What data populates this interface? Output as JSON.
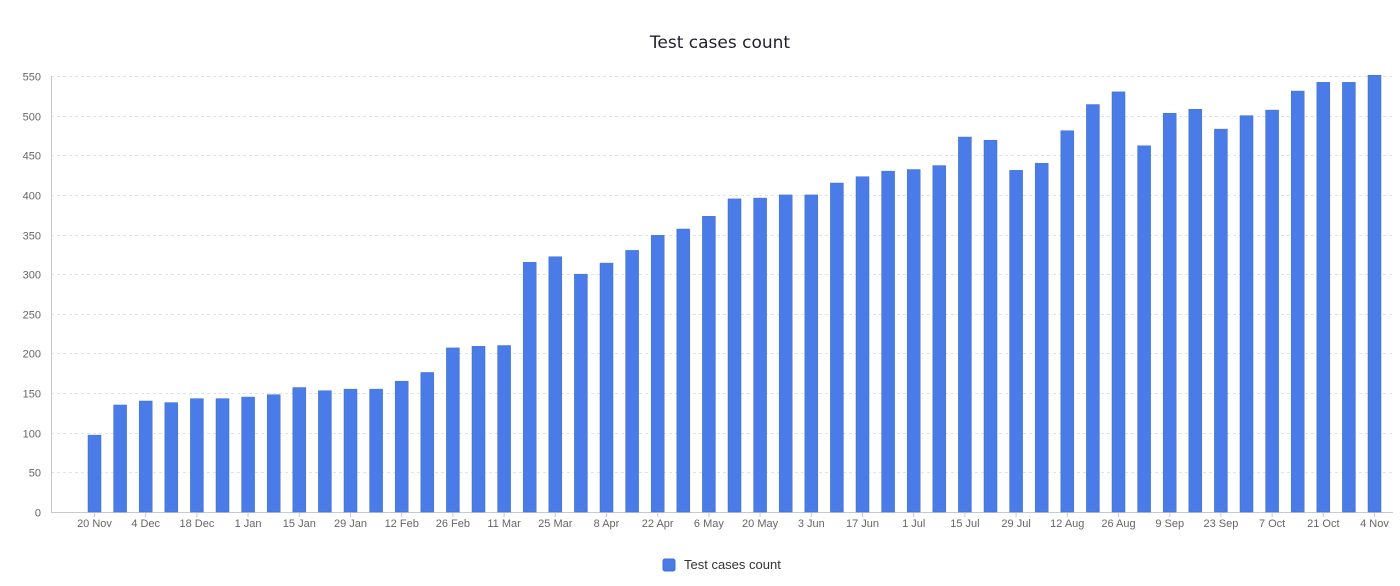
{
  "chart_data": {
    "type": "bar",
    "title": "Test cases count",
    "xlabel": "",
    "ylabel": "",
    "ylim": [
      0,
      550
    ],
    "yticks": [
      0,
      50,
      100,
      150,
      200,
      250,
      300,
      350,
      400,
      450,
      500,
      550
    ],
    "grid": true,
    "legend_position": "bottom-center",
    "x_tick_labels": [
      {
        "index": 0,
        "label": "20 Nov"
      },
      {
        "index": 2,
        "label": "4 Dec"
      },
      {
        "index": 4,
        "label": "18 Dec"
      },
      {
        "index": 6,
        "label": "1 Jan"
      },
      {
        "index": 8,
        "label": "15 Jan"
      },
      {
        "index": 10,
        "label": "29 Jan"
      },
      {
        "index": 12,
        "label": "12 Feb"
      },
      {
        "index": 14,
        "label": "26 Feb"
      },
      {
        "index": 16,
        "label": "11 Mar"
      },
      {
        "index": 18,
        "label": "25 Mar"
      },
      {
        "index": 20,
        "label": "8 Apr"
      },
      {
        "index": 22,
        "label": "22 Apr"
      },
      {
        "index": 24,
        "label": "6 May"
      },
      {
        "index": 26,
        "label": "20 May"
      },
      {
        "index": 28,
        "label": "3 Jun"
      },
      {
        "index": 30,
        "label": "17 Jun"
      },
      {
        "index": 32,
        "label": "1 Jul"
      },
      {
        "index": 34,
        "label": "15 Jul"
      },
      {
        "index": 36,
        "label": "29 Jul"
      },
      {
        "index": 38,
        "label": "12 Aug"
      },
      {
        "index": 40,
        "label": "26 Aug"
      },
      {
        "index": 42,
        "label": "9 Sep"
      },
      {
        "index": 44,
        "label": "23 Sep"
      },
      {
        "index": 46,
        "label": "7 Oct"
      },
      {
        "index": 48,
        "label": "21 Oct"
      },
      {
        "index": 50,
        "label": "4 Nov"
      }
    ],
    "series": [
      {
        "name": "Test cases count",
        "color": "#4a7be6",
        "values": [
          97,
          135,
          140,
          138,
          143,
          143,
          145,
          148,
          157,
          153,
          155,
          155,
          165,
          176,
          207,
          209,
          210,
          315,
          322,
          300,
          314,
          330,
          349,
          357,
          373,
          395,
          396,
          400,
          400,
          415,
          423,
          430,
          432,
          437,
          473,
          469,
          431,
          440,
          481,
          514,
          530,
          462,
          503,
          508,
          483,
          500,
          507,
          531,
          542,
          542,
          551
        ]
      }
    ]
  }
}
